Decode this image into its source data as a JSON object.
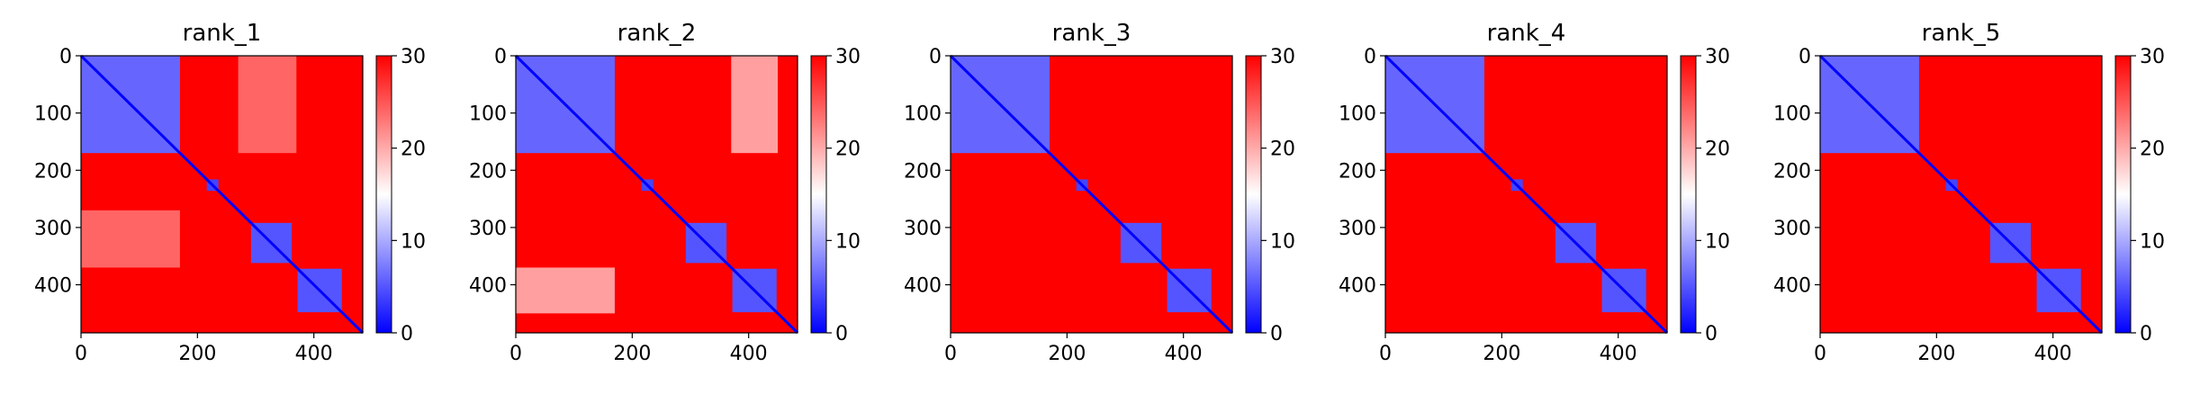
{
  "figure": {
    "background": "#ffffff"
  },
  "colormap": {
    "name": "bwr",
    "low": "#0000ff",
    "mid": "#ffffff",
    "high": "#ff0000"
  },
  "chart_data": [
    {
      "type": "heatmap",
      "title": "rank_1",
      "xlim": [
        0,
        484
      ],
      "ylim": [
        484,
        0
      ],
      "xticks": [
        0,
        200,
        400
      ],
      "yticks": [
        0,
        100,
        200,
        300,
        400
      ],
      "colorbar": {
        "range": [
          0,
          30
        ],
        "ticks": [
          0,
          10,
          20,
          30
        ]
      },
      "diagonal": {
        "value": 0
      },
      "blocks": [
        {
          "from": 0,
          "to": 170,
          "value": 6
        },
        {
          "from": 216,
          "to": 236,
          "value": 4
        },
        {
          "from": 292,
          "to": 362,
          "value": 5
        },
        {
          "from": 372,
          "to": 448,
          "value": 5
        }
      ],
      "offdiag": [
        {
          "rows": [
            0,
            170
          ],
          "cols": [
            270,
            370
          ],
          "value": 23
        },
        {
          "rows": [
            270,
            370
          ],
          "cols": [
            0,
            170
          ],
          "value": 23
        }
      ],
      "background_value": 30
    },
    {
      "type": "heatmap",
      "title": "rank_2",
      "xlim": [
        0,
        484
      ],
      "ylim": [
        484,
        0
      ],
      "xticks": [
        0,
        200,
        400
      ],
      "yticks": [
        0,
        100,
        200,
        300,
        400
      ],
      "colorbar": {
        "range": [
          0,
          30
        ],
        "ticks": [
          0,
          10,
          20,
          30
        ]
      },
      "diagonal": {
        "value": 0
      },
      "blocks": [
        {
          "from": 0,
          "to": 170,
          "value": 6
        },
        {
          "from": 216,
          "to": 236,
          "value": 4
        },
        {
          "from": 292,
          "to": 362,
          "value": 5
        },
        {
          "from": 372,
          "to": 448,
          "value": 5
        }
      ],
      "offdiag": [
        {
          "rows": [
            0,
            170
          ],
          "cols": [
            370,
            450
          ],
          "value": 19
        },
        {
          "rows": [
            370,
            450
          ],
          "cols": [
            0,
            170
          ],
          "value": 19
        }
      ],
      "background_value": 30
    },
    {
      "type": "heatmap",
      "title": "rank_3",
      "xlim": [
        0,
        484
      ],
      "ylim": [
        484,
        0
      ],
      "xticks": [
        0,
        200,
        400
      ],
      "yticks": [
        0,
        100,
        200,
        300,
        400
      ],
      "colorbar": {
        "range": [
          0,
          30
        ],
        "ticks": [
          0,
          10,
          20,
          30
        ]
      },
      "diagonal": {
        "value": 0
      },
      "blocks": [
        {
          "from": 0,
          "to": 170,
          "value": 6
        },
        {
          "from": 216,
          "to": 236,
          "value": 4
        },
        {
          "from": 292,
          "to": 362,
          "value": 5
        },
        {
          "from": 372,
          "to": 448,
          "value": 5
        }
      ],
      "offdiag": [],
      "background_value": 30
    },
    {
      "type": "heatmap",
      "title": "rank_4",
      "xlim": [
        0,
        484
      ],
      "ylim": [
        484,
        0
      ],
      "xticks": [
        0,
        200,
        400
      ],
      "yticks": [
        0,
        100,
        200,
        300,
        400
      ],
      "colorbar": {
        "range": [
          0,
          30
        ],
        "ticks": [
          0,
          10,
          20,
          30
        ]
      },
      "diagonal": {
        "value": 0
      },
      "blocks": [
        {
          "from": 0,
          "to": 170,
          "value": 6
        },
        {
          "from": 216,
          "to": 236,
          "value": 4
        },
        {
          "from": 292,
          "to": 362,
          "value": 5
        },
        {
          "from": 372,
          "to": 448,
          "value": 5
        }
      ],
      "offdiag": [],
      "background_value": 30
    },
    {
      "type": "heatmap",
      "title": "rank_5",
      "xlim": [
        0,
        484
      ],
      "ylim": [
        484,
        0
      ],
      "xticks": [
        0,
        200,
        400
      ],
      "yticks": [
        0,
        100,
        200,
        300,
        400
      ],
      "colorbar": {
        "range": [
          0,
          30
        ],
        "ticks": [
          0,
          10,
          20,
          30
        ]
      },
      "diagonal": {
        "value": 0
      },
      "blocks": [
        {
          "from": 0,
          "to": 170,
          "value": 6
        },
        {
          "from": 216,
          "to": 236,
          "value": 4
        },
        {
          "from": 292,
          "to": 362,
          "value": 5
        },
        {
          "from": 372,
          "to": 448,
          "value": 5
        }
      ],
      "offdiag": [],
      "background_value": 30
    }
  ]
}
